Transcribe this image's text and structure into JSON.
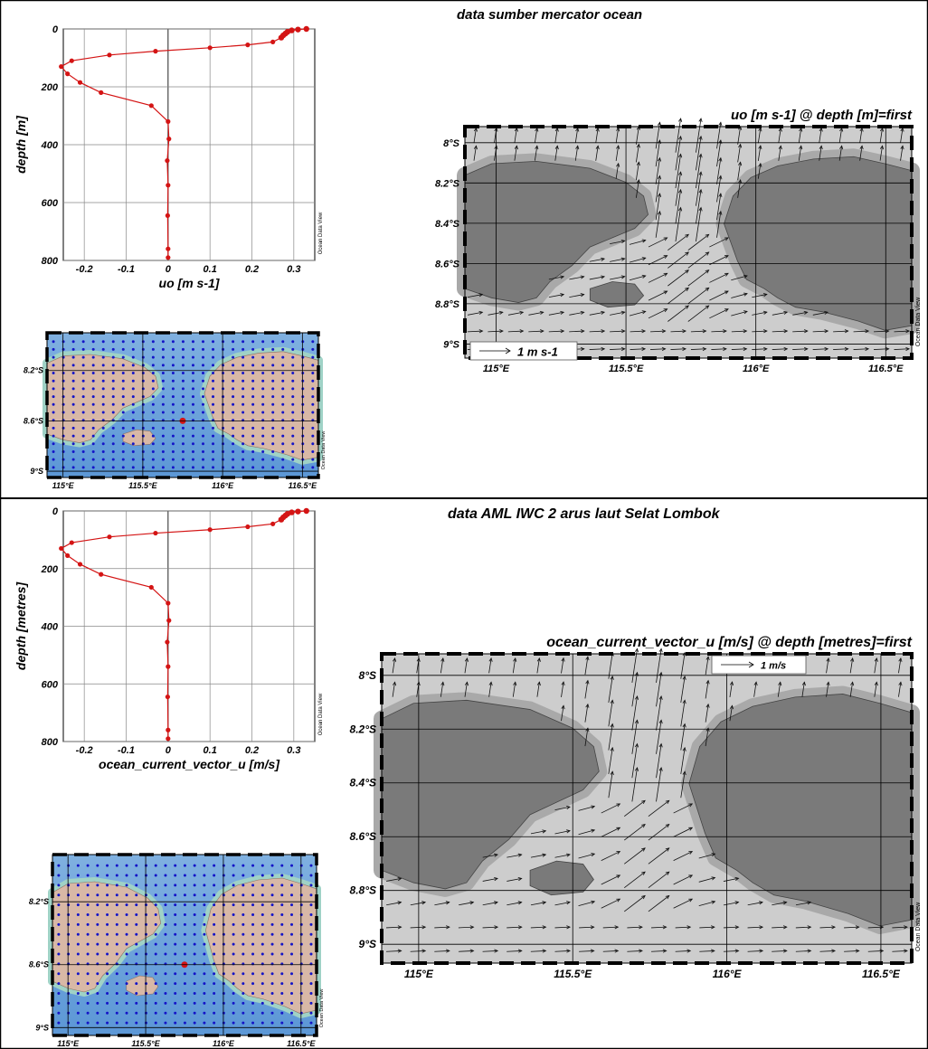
{
  "panels": [
    {
      "title": "data sumber mercator ocean"
    },
    {
      "title": "data AML IWC 2 arus laut Selat Lombok"
    }
  ],
  "watermark": "Ocean Data View",
  "colors": {
    "profile": "#d41414",
    "station": "#1414c8",
    "land": "#d8b8a6",
    "sea": "#6ea7dc",
    "dark_land": "#7a7a7a",
    "light_sea": "#cfcfcf"
  },
  "chart_data": [
    {
      "type": "line",
      "title": "",
      "xlabel": "uo [m s-1]",
      "ylabel": "depth [m]",
      "xlim": [
        -0.25,
        0.35
      ],
      "ylim": [
        800,
        0
      ],
      "xticks": [
        "-0.2",
        "-0.1",
        "0",
        "0.1",
        "0.2",
        "0.3"
      ],
      "yticks": [
        "0",
        "200",
        "400",
        "600",
        "800"
      ],
      "x": [
        0.33,
        0.31,
        0.295,
        0.285,
        0.28,
        0.275,
        0.27,
        0.25,
        0.19,
        0.1,
        -0.03,
        -0.14,
        -0.23,
        -0.255,
        -0.24,
        -0.21,
        -0.16,
        -0.04,
        0.0,
        0.002,
        -0.002,
        0.0,
        -0.001,
        0.0,
        0.0
      ],
      "y": [
        0,
        2,
        5,
        10,
        16,
        22,
        30,
        45,
        55,
        65,
        77,
        90,
        110,
        130,
        155,
        185,
        220,
        265,
        320,
        380,
        455,
        540,
        645,
        760,
        790
      ]
    },
    {
      "type": "scatter",
      "title": "",
      "xlabel": "",
      "ylabel": "",
      "xticks": [
        "115°E",
        "115.5°E",
        "116°E",
        "116.5°E"
      ],
      "yticks": [
        "8.2°S",
        "8.6°S",
        "9°S"
      ],
      "xlim": [
        114.9,
        116.6
      ],
      "ylim": [
        -9.05,
        -7.9
      ],
      "stations_grid": {
        "lon_start": 114.94,
        "lon_step": 0.0625,
        "lat_start": -7.97,
        "lat_step": -0.0625
      },
      "highlight": {
        "lon": 115.75,
        "lat": -8.6
      }
    },
    {
      "type": "other",
      "title": "uo [m s-1] @ depth [m]=first",
      "xticks": [
        "115°E",
        "115.5°E",
        "116°E",
        "116.5°E"
      ],
      "yticks": [
        "8°S",
        "8.2°S",
        "8.4°S",
        "8.6°S",
        "8.8°S",
        "9°S"
      ],
      "xlim": [
        114.88,
        116.6
      ],
      "ylim": [
        -9.07,
        -7.92
      ],
      "legend": "1 m s-1"
    },
    {
      "type": "line",
      "title": "",
      "xlabel": "ocean_current_vector_u [m/s]",
      "ylabel": "depth [metres]",
      "xlim": [
        -0.25,
        0.35
      ],
      "ylim": [
        800,
        0
      ],
      "xticks": [
        "-0.2",
        "-0.1",
        "0",
        "0.1",
        "0.2",
        "0.3"
      ],
      "yticks": [
        "0",
        "200",
        "400",
        "600",
        "800"
      ],
      "x": [
        0.33,
        0.31,
        0.295,
        0.285,
        0.28,
        0.275,
        0.27,
        0.25,
        0.19,
        0.1,
        -0.03,
        -0.14,
        -0.23,
        -0.255,
        -0.24,
        -0.21,
        -0.16,
        -0.04,
        0.0,
        0.002,
        -0.002,
        0.0,
        -0.001,
        0.0,
        0.0
      ],
      "y": [
        0,
        2,
        5,
        10,
        16,
        22,
        30,
        45,
        55,
        65,
        77,
        90,
        110,
        130,
        155,
        185,
        220,
        265,
        320,
        380,
        455,
        540,
        645,
        760,
        790
      ]
    },
    {
      "type": "scatter",
      "title": "",
      "xlabel": "",
      "ylabel": "",
      "xticks": [
        "115°E",
        "115.5°E",
        "116°E",
        "116.5°E"
      ],
      "yticks": [
        "8.2°S",
        "8.6°S",
        "9°S"
      ],
      "xlim": [
        114.9,
        116.6
      ],
      "ylim": [
        -9.05,
        -7.9
      ],
      "stations_grid": {
        "lon_start": 114.94,
        "lon_step": 0.0625,
        "lat_start": -7.97,
        "lat_step": -0.0625
      },
      "highlight": {
        "lon": 115.75,
        "lat": -8.6
      }
    },
    {
      "type": "other",
      "title": "ocean_current_vector_u [m/s] @ depth [metres]=first",
      "xticks": [
        "115°E",
        "115.5°E",
        "116°E",
        "116.5°E"
      ],
      "yticks": [
        "8°S",
        "8.2°S",
        "8.4°S",
        "8.6°S",
        "8.8°S",
        "9°S"
      ],
      "xlim": [
        114.88,
        116.6
      ],
      "ylim": [
        -9.07,
        -7.92
      ],
      "legend": "1 m/s"
    }
  ]
}
